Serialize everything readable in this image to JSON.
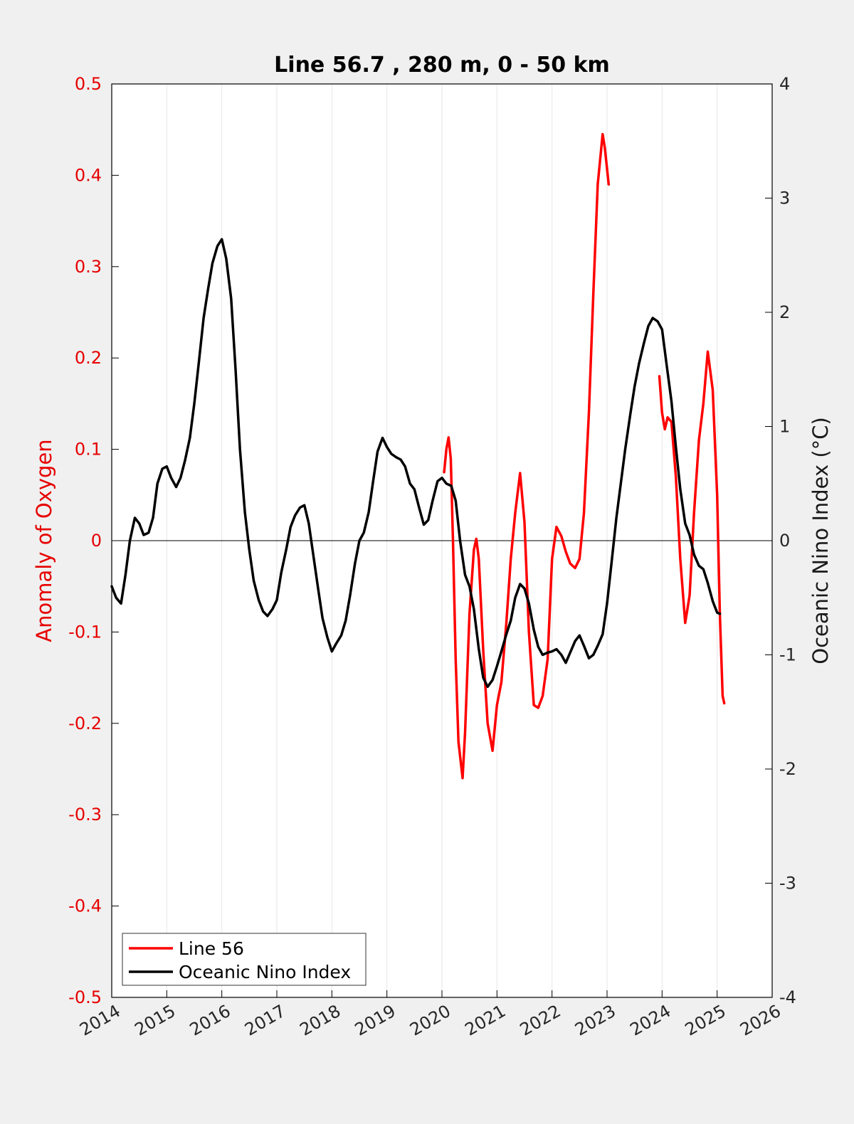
{
  "chart_data": {
    "type": "line",
    "title": "Line 56.7 , 280 m, 0 - 50 km",
    "xlabel": "",
    "ylabel_left": "Anomaly of Oxygen",
    "ylabel_right": "Oceanic Nino Index (°C)",
    "xlim": [
      2014,
      2026
    ],
    "ylim_left": [
      -0.5,
      0.5
    ],
    "ylim_right": [
      -4,
      4
    ],
    "x_ticks": [
      "2014",
      "2015",
      "2016",
      "2017",
      "2018",
      "2019",
      "2020",
      "2021",
      "2022",
      "2023",
      "2024",
      "2025",
      "2026"
    ],
    "y_ticks_left": [
      "-0.5",
      "-0.4",
      "-0.3",
      "-0.2",
      "-0.1",
      "0",
      "0.1",
      "0.2",
      "0.3",
      "0.4",
      "0.5"
    ],
    "y_ticks_right": [
      "-4",
      "-3",
      "-2",
      "-1",
      "0",
      "1",
      "2",
      "3",
      "4"
    ],
    "vertical_grid": true,
    "legend_position": "bottom-left",
    "colors": {
      "left_axis": "#e60000",
      "line56": "#ff0000",
      "oni": "#000000",
      "grid": "#e6e6e6",
      "zero_line": "#000000"
    },
    "series": [
      {
        "name": "Line 56",
        "axis": "left",
        "segments": [
          [
            [
              2020.04,
              0.075
            ],
            [
              2020.08,
              0.1
            ],
            [
              2020.12,
              0.113
            ],
            [
              2020.16,
              0.09
            ],
            [
              2020.2,
              0.0
            ],
            [
              2020.25,
              -0.13
            ],
            [
              2020.3,
              -0.22
            ],
            [
              2020.375,
              -0.26
            ],
            [
              2020.42,
              -0.21
            ],
            [
              2020.5,
              -0.08
            ],
            [
              2020.58,
              -0.01
            ],
            [
              2020.625,
              0.002
            ],
            [
              2020.67,
              -0.02
            ],
            [
              2020.75,
              -0.12
            ],
            [
              2020.83,
              -0.2
            ],
            [
              2020.92,
              -0.23
            ],
            [
              2021.0,
              -0.18
            ],
            [
              2021.08,
              -0.155
            ],
            [
              2021.17,
              -0.09
            ],
            [
              2021.25,
              -0.02
            ],
            [
              2021.33,
              0.03
            ],
            [
              2021.42,
              0.074
            ],
            [
              2021.5,
              0.02
            ],
            [
              2021.58,
              -0.1
            ],
            [
              2021.67,
              -0.18
            ],
            [
              2021.75,
              -0.183
            ],
            [
              2021.83,
              -0.17
            ],
            [
              2021.92,
              -0.13
            ],
            [
              2022.0,
              -0.02
            ],
            [
              2022.08,
              0.015
            ],
            [
              2022.17,
              0.005
            ],
            [
              2022.25,
              -0.012
            ],
            [
              2022.33,
              -0.025
            ],
            [
              2022.42,
              -0.03
            ],
            [
              2022.5,
              -0.02
            ],
            [
              2022.58,
              0.03
            ],
            [
              2022.67,
              0.14
            ],
            [
              2022.75,
              0.27
            ],
            [
              2022.83,
              0.39
            ],
            [
              2022.92,
              0.445
            ],
            [
              2022.96,
              0.43
            ],
            [
              2023.03,
              0.39
            ]
          ],
          [
            [
              2023.95,
              0.18
            ],
            [
              2024.0,
              0.14
            ],
            [
              2024.05,
              0.122
            ],
            [
              2024.1,
              0.135
            ],
            [
              2024.17,
              0.13
            ],
            [
              2024.25,
              0.07
            ],
            [
              2024.33,
              -0.02
            ],
            [
              2024.42,
              -0.09
            ],
            [
              2024.5,
              -0.06
            ],
            [
              2024.58,
              0.03
            ],
            [
              2024.67,
              0.11
            ],
            [
              2024.75,
              0.15
            ],
            [
              2024.83,
              0.207
            ],
            [
              2024.92,
              0.165
            ],
            [
              2025.0,
              0.05
            ],
            [
              2025.05,
              -0.08
            ],
            [
              2025.1,
              -0.17
            ],
            [
              2025.13,
              -0.178
            ]
          ]
        ]
      },
      {
        "name": "Oceanic Nino Index",
        "axis": "right",
        "segments": [
          [
            [
              2014.0,
              -0.4
            ],
            [
              2014.08,
              -0.5
            ],
            [
              2014.17,
              -0.55
            ],
            [
              2014.25,
              -0.3
            ],
            [
              2014.33,
              0.0
            ],
            [
              2014.42,
              0.2
            ],
            [
              2014.5,
              0.15
            ],
            [
              2014.58,
              0.05
            ],
            [
              2014.67,
              0.07
            ],
            [
              2014.75,
              0.2
            ],
            [
              2014.83,
              0.5
            ],
            [
              2014.92,
              0.63
            ],
            [
              2015.0,
              0.65
            ],
            [
              2015.08,
              0.55
            ],
            [
              2015.17,
              0.47
            ],
            [
              2015.25,
              0.55
            ],
            [
              2015.33,
              0.7
            ],
            [
              2015.42,
              0.9
            ],
            [
              2015.5,
              1.2
            ],
            [
              2015.58,
              1.55
            ],
            [
              2015.67,
              1.95
            ],
            [
              2015.75,
              2.2
            ],
            [
              2015.83,
              2.43
            ],
            [
              2015.92,
              2.58
            ],
            [
              2016.0,
              2.64
            ],
            [
              2016.08,
              2.47
            ],
            [
              2016.17,
              2.12
            ],
            [
              2016.25,
              1.5
            ],
            [
              2016.33,
              0.8
            ],
            [
              2016.42,
              0.25
            ],
            [
              2016.5,
              -0.08
            ],
            [
              2016.58,
              -0.35
            ],
            [
              2016.67,
              -0.52
            ],
            [
              2016.75,
              -0.62
            ],
            [
              2016.83,
              -0.66
            ],
            [
              2016.92,
              -0.6
            ],
            [
              2017.0,
              -0.52
            ],
            [
              2017.08,
              -0.28
            ],
            [
              2017.17,
              -0.08
            ],
            [
              2017.25,
              0.12
            ],
            [
              2017.33,
              0.22
            ],
            [
              2017.42,
              0.29
            ],
            [
              2017.5,
              0.31
            ],
            [
              2017.58,
              0.15
            ],
            [
              2017.67,
              -0.15
            ],
            [
              2017.75,
              -0.42
            ],
            [
              2017.83,
              -0.68
            ],
            [
              2017.92,
              -0.85
            ],
            [
              2018.0,
              -0.97
            ],
            [
              2018.08,
              -0.9
            ],
            [
              2018.17,
              -0.83
            ],
            [
              2018.25,
              -0.7
            ],
            [
              2018.33,
              -0.48
            ],
            [
              2018.42,
              -0.2
            ],
            [
              2018.5,
              0.0
            ],
            [
              2018.58,
              0.07
            ],
            [
              2018.67,
              0.25
            ],
            [
              2018.75,
              0.52
            ],
            [
              2018.83,
              0.78
            ],
            [
              2018.92,
              0.9
            ],
            [
              2019.0,
              0.82
            ],
            [
              2019.08,
              0.76
            ],
            [
              2019.17,
              0.73
            ],
            [
              2019.25,
              0.71
            ],
            [
              2019.33,
              0.65
            ],
            [
              2019.42,
              0.5
            ],
            [
              2019.5,
              0.45
            ],
            [
              2019.58,
              0.3
            ],
            [
              2019.67,
              0.14
            ],
            [
              2019.75,
              0.18
            ],
            [
              2019.83,
              0.35
            ],
            [
              2019.92,
              0.52
            ],
            [
              2020.0,
              0.55
            ],
            [
              2020.08,
              0.5
            ],
            [
              2020.17,
              0.48
            ],
            [
              2020.25,
              0.35
            ],
            [
              2020.33,
              0.0
            ],
            [
              2020.42,
              -0.3
            ],
            [
              2020.5,
              -0.4
            ],
            [
              2020.58,
              -0.6
            ],
            [
              2020.67,
              -0.95
            ],
            [
              2020.75,
              -1.2
            ],
            [
              2020.83,
              -1.28
            ],
            [
              2020.92,
              -1.22
            ],
            [
              2021.0,
              -1.1
            ],
            [
              2021.08,
              -0.97
            ],
            [
              2021.17,
              -0.82
            ],
            [
              2021.25,
              -0.7
            ],
            [
              2021.33,
              -0.5
            ],
            [
              2021.42,
              -0.38
            ],
            [
              2021.5,
              -0.42
            ],
            [
              2021.58,
              -0.55
            ],
            [
              2021.67,
              -0.78
            ],
            [
              2021.75,
              -0.93
            ],
            [
              2021.83,
              -1.0
            ],
            [
              2021.92,
              -0.98
            ],
            [
              2022.0,
              -0.97
            ],
            [
              2022.08,
              -0.95
            ],
            [
              2022.17,
              -1.0
            ],
            [
              2022.25,
              -1.07
            ],
            [
              2022.33,
              -0.98
            ],
            [
              2022.42,
              -0.88
            ],
            [
              2022.5,
              -0.83
            ],
            [
              2022.58,
              -0.92
            ],
            [
              2022.67,
              -1.03
            ],
            [
              2022.75,
              -1.0
            ],
            [
              2022.83,
              -0.92
            ],
            [
              2022.92,
              -0.82
            ],
            [
              2023.0,
              -0.55
            ],
            [
              2023.08,
              -0.2
            ],
            [
              2023.17,
              0.2
            ],
            [
              2023.25,
              0.5
            ],
            [
              2023.33,
              0.8
            ],
            [
              2023.42,
              1.1
            ],
            [
              2023.5,
              1.35
            ],
            [
              2023.58,
              1.55
            ],
            [
              2023.67,
              1.73
            ],
            [
              2023.75,
              1.88
            ],
            [
              2023.83,
              1.95
            ],
            [
              2023.92,
              1.92
            ],
            [
              2024.0,
              1.85
            ],
            [
              2024.08,
              1.55
            ],
            [
              2024.17,
              1.22
            ],
            [
              2024.25,
              0.82
            ],
            [
              2024.33,
              0.45
            ],
            [
              2024.42,
              0.15
            ],
            [
              2024.5,
              0.05
            ],
            [
              2024.58,
              -0.12
            ],
            [
              2024.67,
              -0.22
            ],
            [
              2024.75,
              -0.25
            ],
            [
              2024.83,
              -0.37
            ],
            [
              2024.92,
              -0.53
            ],
            [
              2025.0,
              -0.63
            ],
            [
              2025.05,
              -0.64
            ]
          ]
        ]
      }
    ]
  }
}
